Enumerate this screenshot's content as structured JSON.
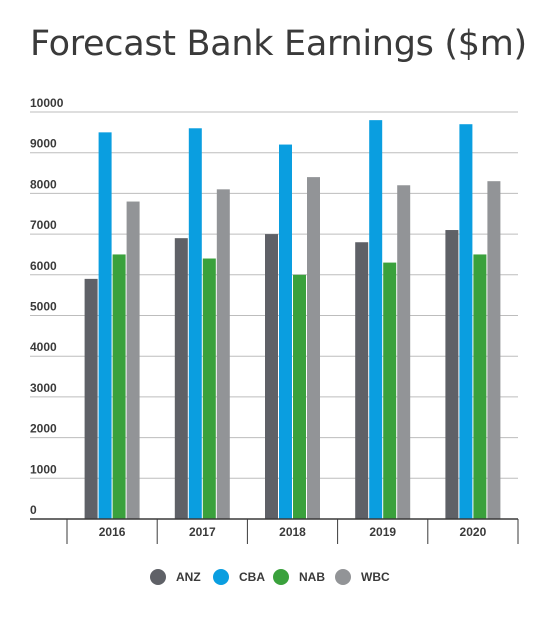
{
  "chart_data": {
    "type": "bar",
    "title": "Forecast Bank Earnings ($m)",
    "xlabel": "",
    "ylabel": "",
    "categories": [
      "2016",
      "2017",
      "2018",
      "2019",
      "2020"
    ],
    "ylim": [
      0,
      10000
    ],
    "yticks": [
      0,
      1000,
      2000,
      3000,
      4000,
      5000,
      6000,
      7000,
      8000,
      9000,
      10000
    ],
    "grid": true,
    "legend": "bottom",
    "series": [
      {
        "name": "ANZ",
        "color": "#5f6167",
        "values": [
          5900,
          6900,
          7000,
          6800,
          7100
        ]
      },
      {
        "name": "CBA",
        "color": "#0a9ee0",
        "values": [
          9500,
          9600,
          9200,
          9800,
          9700
        ]
      },
      {
        "name": "NAB",
        "color": "#3aa13c",
        "values": [
          6500,
          6400,
          6000,
          6300,
          6500
        ]
      },
      {
        "name": "WBC",
        "color": "#929497",
        "values": [
          7800,
          8100,
          8400,
          8200,
          8300
        ]
      }
    ]
  }
}
